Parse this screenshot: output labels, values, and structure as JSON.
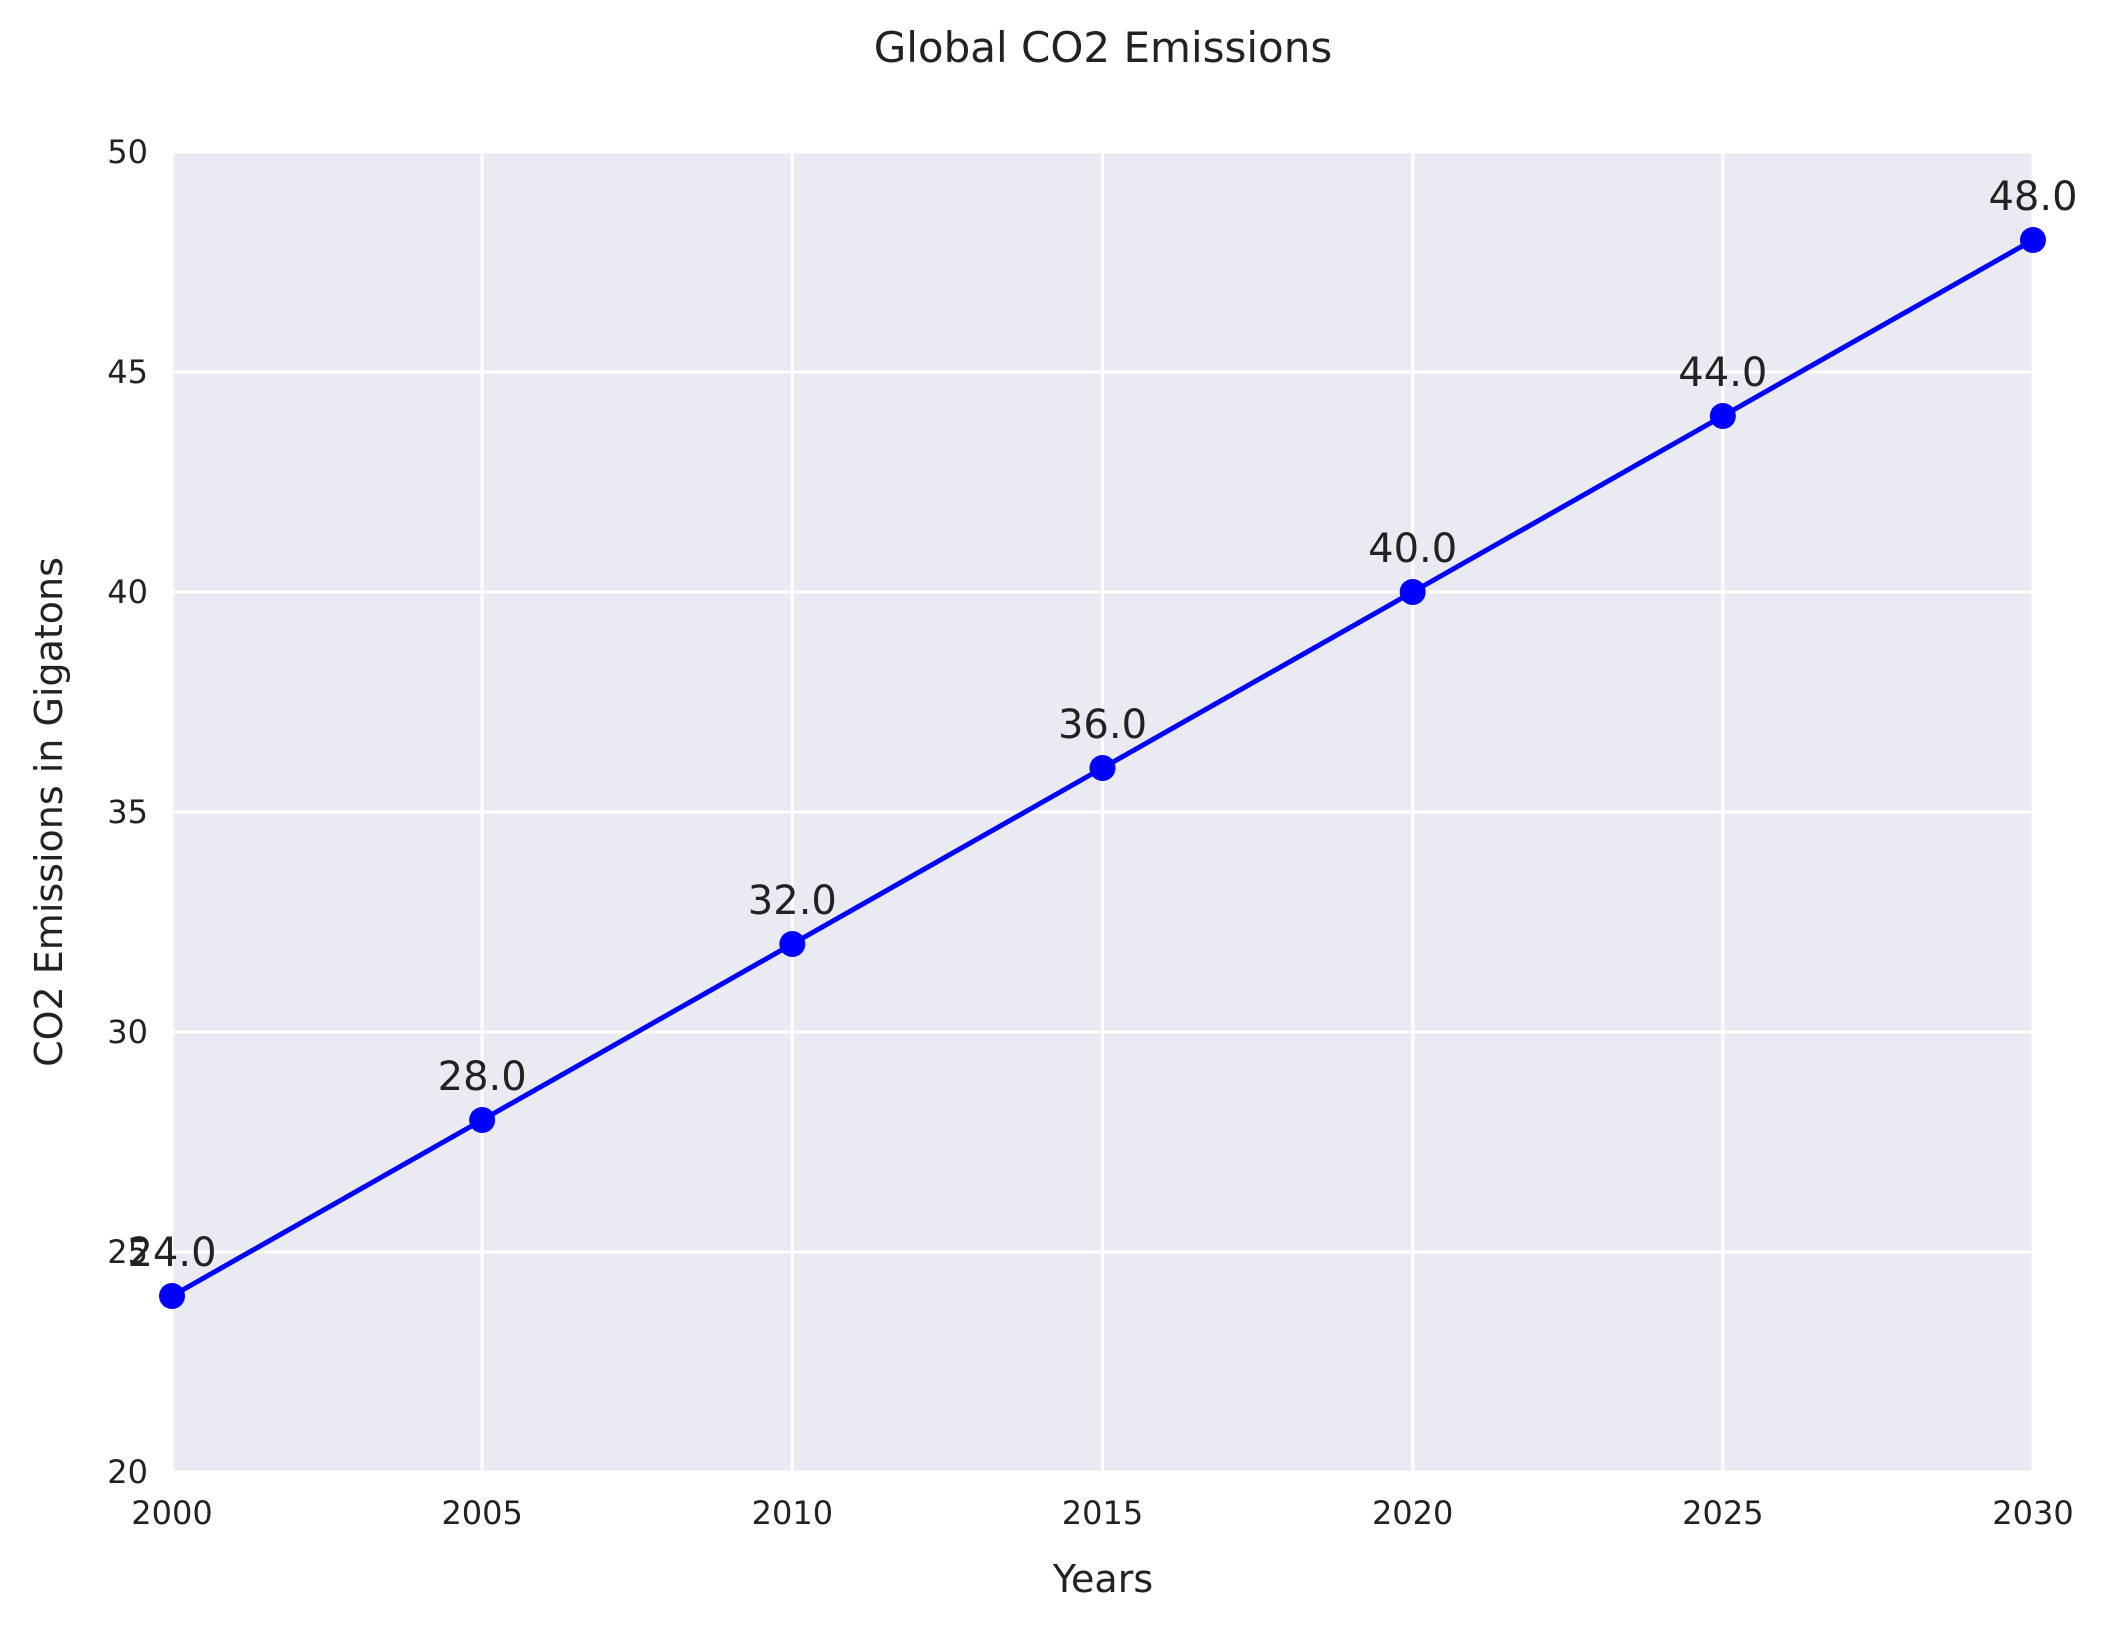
{
  "chart_data": {
    "type": "line",
    "title": "Global CO2 Emissions",
    "xlabel": "Years",
    "ylabel": "CO2 Emissions in Gigatons",
    "xlim": [
      2000,
      2030
    ],
    "ylim": [
      20,
      50
    ],
    "x_ticks": [
      "2000",
      "2005",
      "2010",
      "2015",
      "2020",
      "2025",
      "2030"
    ],
    "y_ticks": [
      "20",
      "25",
      "30",
      "35",
      "40",
      "45",
      "50"
    ],
    "grid": true,
    "series": [
      {
        "x": [
          2000,
          2005,
          2010,
          2015,
          2020,
          2025,
          2030
        ],
        "values": [
          24,
          28,
          32,
          36,
          40,
          44,
          48
        ],
        "labels": [
          "24.0",
          "28.0",
          "32.0",
          "36.0",
          "40.0",
          "44.0",
          "48.0"
        ],
        "color": "#0000ff",
        "marker": "circle"
      }
    ],
    "plot_background": "#eaeaf2"
  }
}
